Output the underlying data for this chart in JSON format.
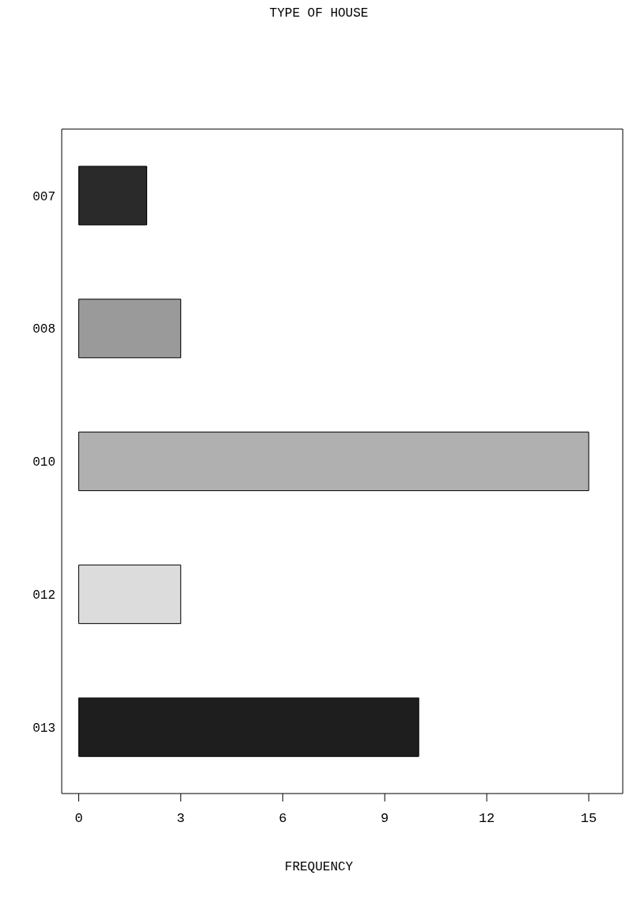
{
  "chart_data": {
    "type": "bar",
    "orientation": "horizontal",
    "title": "TYPE OF HOUSE",
    "xlabel": "FREQUENCY",
    "categories": [
      "007",
      "008",
      "010",
      "012",
      "013"
    ],
    "values": [
      2,
      3,
      15,
      3,
      10
    ],
    "colors": [
      "#2a2a2a",
      "#9a9a9a",
      "#b0b0b0",
      "#dcdcdc",
      "#1e1e1e"
    ],
    "xlim": [
      -0.5,
      16
    ],
    "xticks": [
      0,
      3,
      6,
      9,
      12,
      15
    ],
    "grid": false,
    "legend": false
  }
}
